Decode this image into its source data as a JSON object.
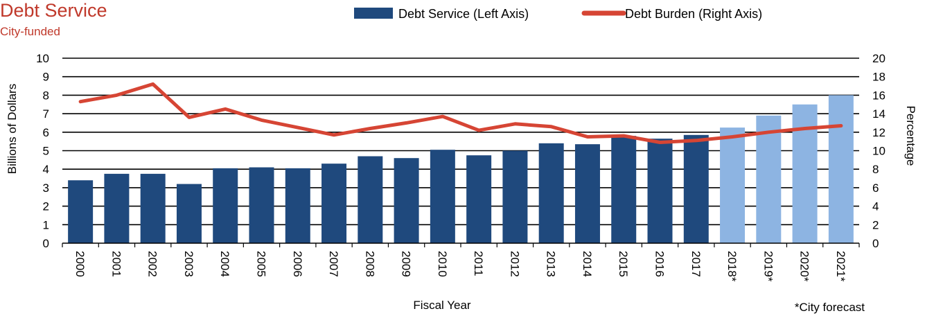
{
  "chart_data": {
    "type": "bar",
    "title": "Debt Service",
    "subtitle": "City-funded",
    "xlabel": "Fiscal Year",
    "ylabel": "Billions of Dollars",
    "y2label": "Percentage",
    "ylim": [
      0,
      10
    ],
    "y2lim": [
      0,
      20
    ],
    "yticks": [
      0,
      1,
      2,
      3,
      4,
      5,
      6,
      7,
      8,
      9,
      10
    ],
    "y2ticks": [
      0,
      2,
      4,
      6,
      8,
      10,
      12,
      14,
      16,
      18,
      20
    ],
    "grid": true,
    "legend_position": "top-right",
    "footnote": "*City forecast",
    "categories": [
      "2000",
      "2001",
      "2002",
      "2003",
      "2004",
      "2005",
      "2006",
      "2007",
      "2008",
      "2009",
      "2010",
      "2011",
      "2012",
      "2013",
      "2014",
      "2015",
      "2016",
      "2017",
      "2018*",
      "2019*",
      "2020*",
      "2021*"
    ],
    "series": [
      {
        "name": "Debt Service (Left Axis)",
        "kind": "bar",
        "axis": "left",
        "values": [
          3.4,
          3.75,
          3.75,
          3.2,
          4.05,
          4.1,
          4.05,
          4.3,
          4.7,
          4.6,
          5.05,
          4.75,
          5.0,
          5.4,
          5.35,
          5.8,
          5.65,
          5.85,
          6.25,
          6.9,
          7.5,
          8.0
        ],
        "forecast_from_index": 18
      },
      {
        "name": "Debt Burden (Right Axis)",
        "kind": "line",
        "axis": "right",
        "values": [
          15.3,
          16.0,
          17.2,
          13.6,
          14.5,
          13.3,
          12.5,
          11.7,
          12.4,
          13.0,
          13.7,
          12.2,
          12.9,
          12.6,
          11.5,
          11.6,
          10.9,
          11.1,
          11.5,
          12.0,
          12.4,
          12.7
        ]
      }
    ],
    "colors": {
      "bar": "#1f497d",
      "bar_forecast": "#8db4e2",
      "line": "#d64534",
      "title": "#c0392b",
      "grid": "#000000"
    }
  }
}
